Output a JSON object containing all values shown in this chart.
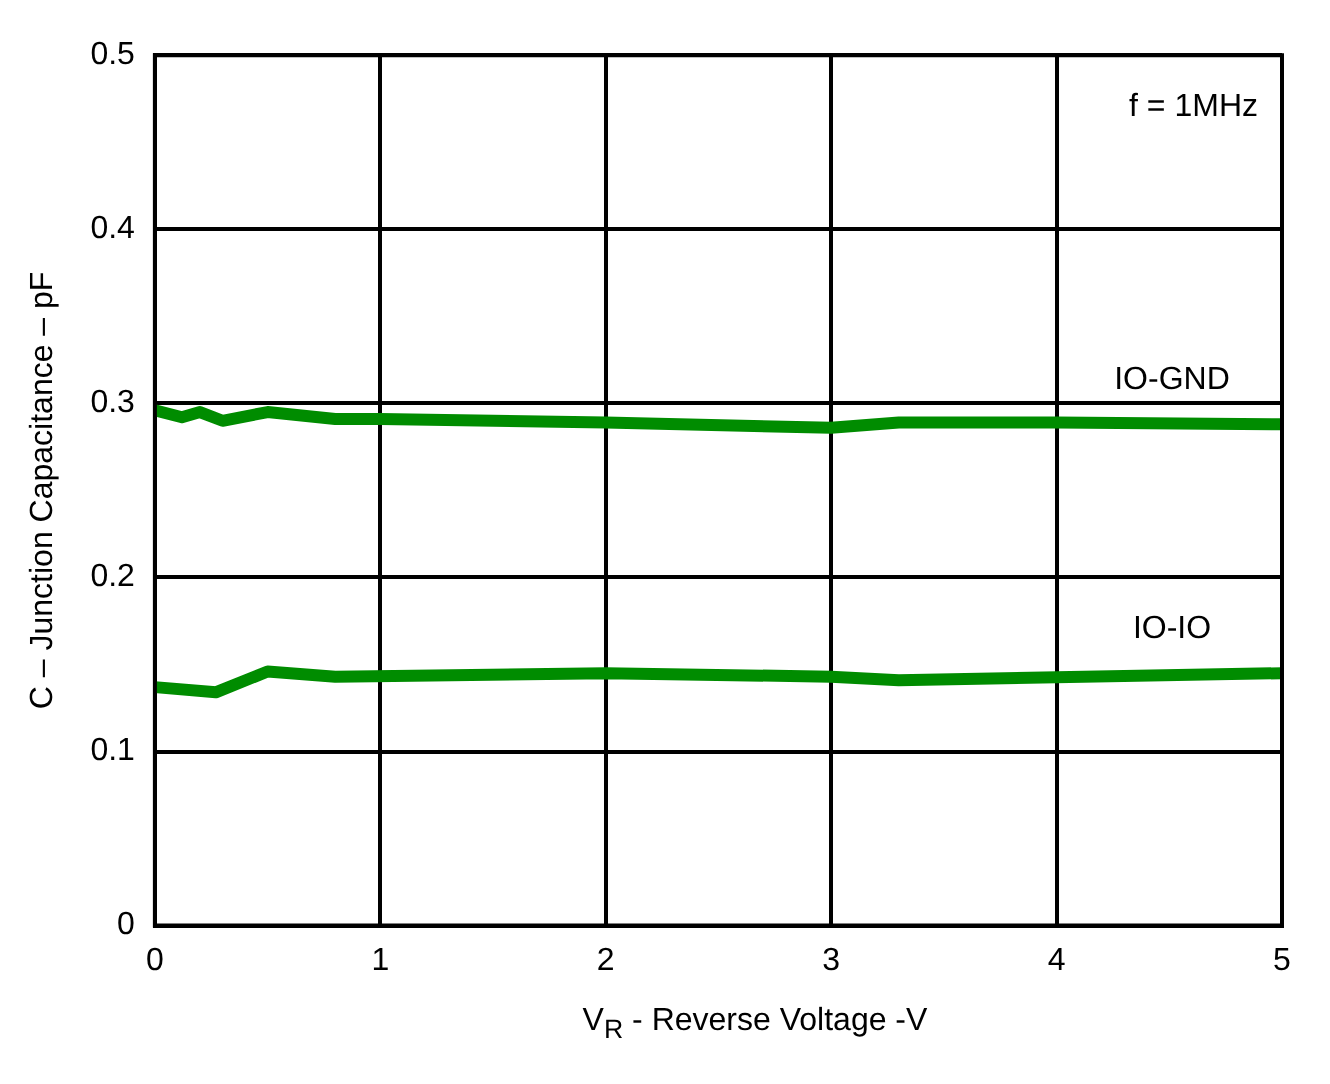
{
  "chart_data": {
    "type": "line",
    "xlabel": "V$_{R}$ - Reverse Voltage -V",
    "ylabel": "C – Junction Capacitance – pF",
    "xlim": [
      0,
      5
    ],
    "xticks": [
      0,
      1,
      2,
      3,
      4,
      5
    ],
    "ylim": [
      0,
      0.5
    ],
    "yticks": [
      0,
      0.1,
      0.2,
      0.3,
      0.4,
      0.5
    ],
    "grid": true,
    "legend": false,
    "marker": "none",
    "line_style": "solid",
    "annotations": [
      "f = 1MHz"
    ],
    "series": [
      {
        "name": "IO-GND",
        "color": "#008c00",
        "x": [
          0,
          0.12,
          0.2,
          0.3,
          0.5,
          0.8,
          1,
          2,
          3,
          3.3,
          4,
          5
        ],
        "values": [
          0.296,
          0.292,
          0.295,
          0.29,
          0.295,
          0.291,
          0.291,
          0.289,
          0.286,
          0.289,
          0.289,
          0.288
        ]
      },
      {
        "name": "IO-IO",
        "color": "#008c00",
        "x": [
          0,
          0.27,
          0.5,
          0.8,
          2,
          3,
          3.3,
          5
        ],
        "values": [
          0.137,
          0.134,
          0.146,
          0.143,
          0.145,
          0.143,
          0.141,
          0.145
        ]
      }
    ]
  }
}
